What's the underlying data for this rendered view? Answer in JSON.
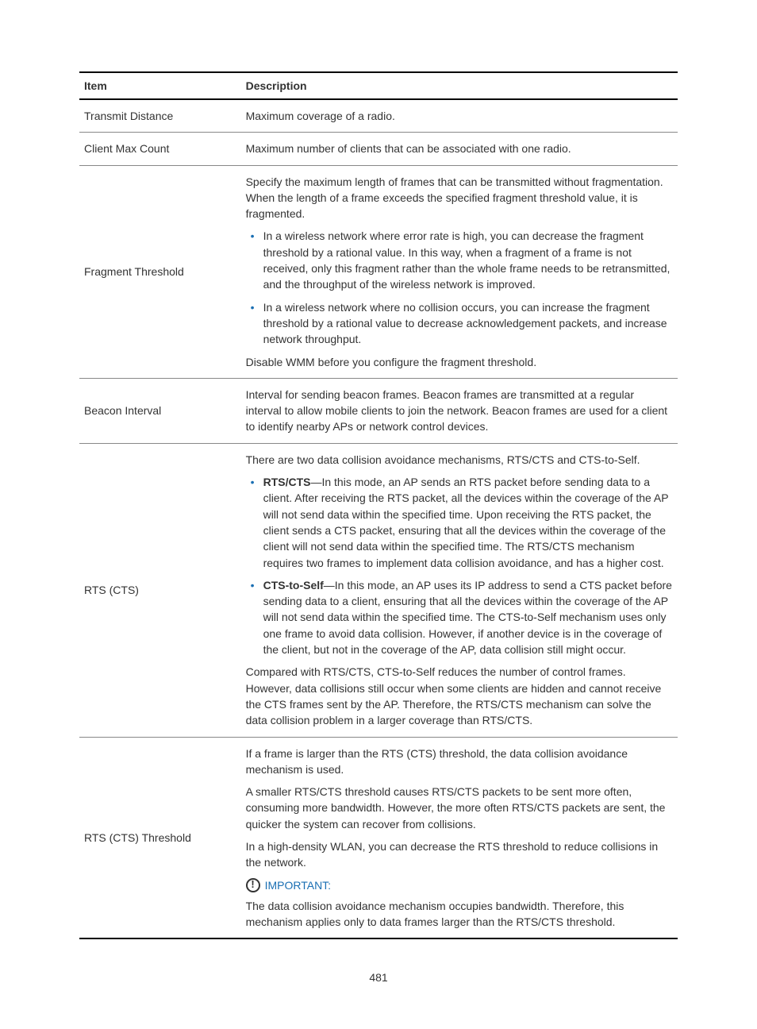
{
  "table": {
    "headers": {
      "item": "Item",
      "description": "Description"
    },
    "rows": [
      {
        "item": "Transmit Distance",
        "desc": {
          "paras": [
            "Maximum coverage of a radio."
          ]
        }
      },
      {
        "item": "Client Max Count",
        "desc": {
          "paras": [
            "Maximum number of clients that can be associated with one radio."
          ]
        }
      },
      {
        "item": "Fragment Threshold",
        "desc": {
          "intro": "Specify the maximum length of frames that can be transmitted without fragmentation. When the length of a frame exceeds the specified fragment threshold value, it is fragmented.",
          "bullets": [
            "In a wireless network where error rate is high, you can decrease the fragment threshold by a rational value. In this way, when a fragment of a frame is not received, only this fragment rather than the whole frame needs to be retransmitted, and the throughput of the wireless network is improved.",
            "In a wireless network where no collision occurs, you can increase the fragment threshold by a rational value to decrease acknowledgement packets, and increase network throughput."
          ],
          "outro": "Disable WMM before you configure the fragment threshold."
        }
      },
      {
        "item": "Beacon Interval",
        "desc": {
          "paras": [
            "Interval for sending beacon frames. Beacon frames are transmitted at a regular interval to allow mobile clients to join the network. Beacon frames are used for a client to identify nearby APs or network control devices."
          ]
        }
      },
      {
        "item": "RTS (CTS)",
        "desc": {
          "intro": "There are two data collision avoidance mechanisms, RTS/CTS and CTS-to-Self.",
          "bullets_rich": [
            {
              "bold": "RTS/CTS",
              "text": "—In this mode, an AP sends an RTS packet before sending data to a client. After receiving the RTS packet, all the devices within the coverage of the AP will not send data within the specified time. Upon receiving the RTS packet, the client sends a CTS packet, ensuring that all the devices within the coverage of the client will not send data within the specified time. The RTS/CTS mechanism requires two frames to implement data collision avoidance, and has a higher cost."
            },
            {
              "bold": "CTS-to-Self",
              "text": "—In this mode, an AP uses its IP address to send a CTS packet before sending data to a client, ensuring that all the devices within the coverage of the AP will not send data within the specified time. The CTS-to-Self mechanism uses only one frame to avoid data collision. However, if another device is in the coverage of the client, but not in the coverage of the AP, data collision still might occur."
            }
          ],
          "outro": "Compared with RTS/CTS, CTS-to-Self reduces the number of control frames. However, data collisions still occur when some clients are hidden and cannot receive the CTS frames sent by the AP. Therefore, the RTS/CTS mechanism can solve the data collision problem in a larger coverage than RTS/CTS."
        }
      },
      {
        "item": "RTS (CTS) Threshold",
        "desc": {
          "paras": [
            "If a frame is larger than the RTS (CTS) threshold, the data collision avoidance mechanism is used.",
            "A smaller RTS/CTS threshold causes RTS/CTS packets to be sent more often, consuming more bandwidth. However, the more often RTS/CTS packets are sent, the quicker the system can recover from collisions.",
            "In a high-density WLAN, you can decrease the RTS threshold to reduce collisions in the network."
          ],
          "important": {
            "label": "IMPORTANT:",
            "text": "The data collision avoidance mechanism occupies bandwidth. Therefore, this mechanism applies only to data frames larger than the RTS/CTS threshold."
          }
        }
      }
    ]
  },
  "page_number": "481",
  "colors": {
    "accent": "#1a6fb3",
    "text": "#333333"
  }
}
